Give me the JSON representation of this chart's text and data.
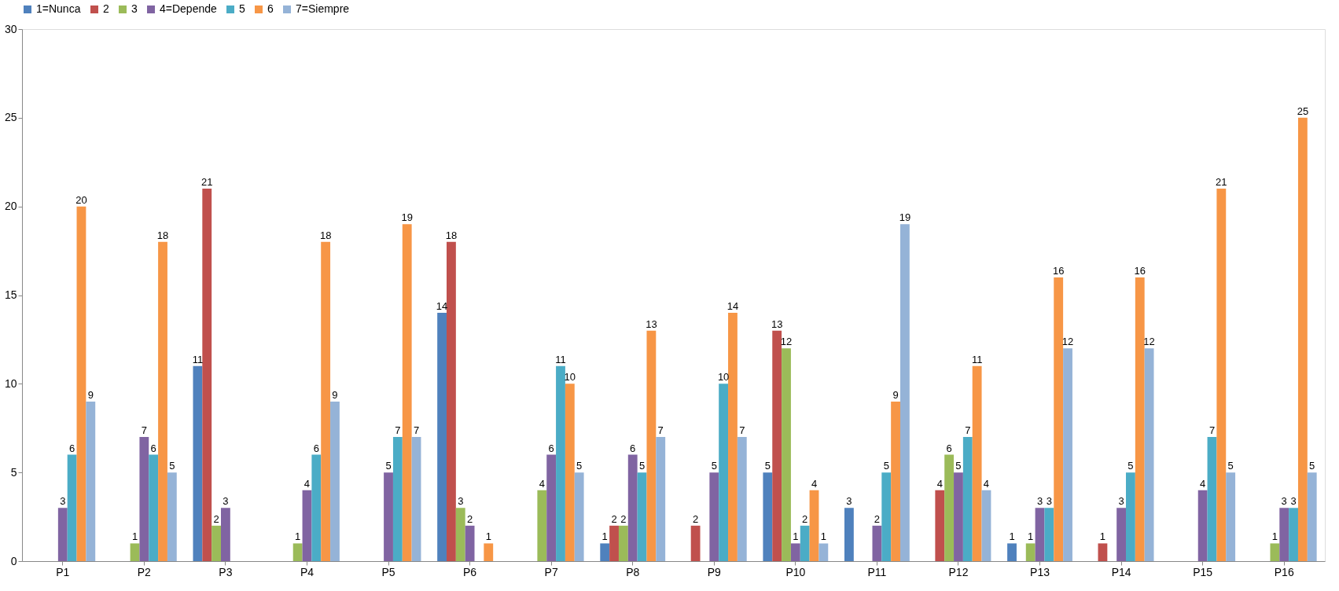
{
  "chart_data": {
    "type": "bar",
    "categories": [
      "P1",
      "P2",
      "P3",
      "P4",
      "P5",
      "P6",
      "P7",
      "P8",
      "P9",
      "P10",
      "P11",
      "P12",
      "P13",
      "P14",
      "P15",
      "P16"
    ],
    "series": [
      {
        "name": "1=Nunca",
        "color": "#4f81bd",
        "values": [
          0,
          0,
          11,
          0,
          0,
          14,
          0,
          1,
          0,
          5,
          3,
          0,
          1,
          0,
          0,
          0
        ],
        "value_labels": [
          null,
          null,
          "11",
          null,
          null,
          "14",
          null,
          "1",
          null,
          "5",
          "3",
          null,
          "1",
          null,
          null,
          null
        ]
      },
      {
        "name": "2",
        "color": "#c0504d",
        "values": [
          0,
          0,
          21,
          0,
          0,
          18,
          0,
          2,
          2,
          13,
          0,
          4,
          0,
          1,
          0,
          0
        ],
        "value_labels": [
          null,
          null,
          "21",
          null,
          null,
          "18",
          null,
          "2",
          "2",
          "13",
          null,
          "4",
          null,
          "1",
          null,
          null
        ]
      },
      {
        "name": "3",
        "color": "#9bbb59",
        "values": [
          0,
          1,
          2,
          1,
          0,
          3,
          4,
          2,
          0,
          12,
          0,
          6,
          1,
          0,
          0,
          1
        ],
        "value_labels": [
          null,
          "1",
          "2",
          "1",
          null,
          "3",
          "4",
          "2",
          null,
          "12",
          null,
          "6",
          "1",
          null,
          null,
          "1"
        ]
      },
      {
        "name": "4=Depende",
        "color": "#8064a2",
        "values": [
          3,
          7,
          3,
          4,
          5,
          2,
          6,
          6,
          5,
          1,
          2,
          5,
          3,
          3,
          4,
          3
        ],
        "value_labels": [
          "3",
          "7",
          "3",
          "4",
          "5",
          "2",
          "6",
          "6",
          "5",
          "1",
          "2",
          "5",
          "3",
          "3",
          "4",
          "3"
        ]
      },
      {
        "name": "5",
        "color": "#4bacc6",
        "values": [
          6,
          6,
          0,
          6,
          7,
          0,
          11,
          5,
          10,
          2,
          5,
          7,
          3,
          5,
          7,
          3
        ],
        "value_labels": [
          "6",
          "6",
          null,
          "6",
          "7",
          null,
          "11",
          "5",
          "10",
          "2",
          "5",
          "7",
          "3",
          "5",
          "7",
          "3"
        ]
      },
      {
        "name": "6",
        "color": "#f79646",
        "values": [
          20,
          18,
          0,
          18,
          19,
          1,
          10,
          13,
          14,
          4,
          9,
          11,
          16,
          16,
          21,
          25
        ],
        "value_labels": [
          "20",
          "18",
          null,
          "18",
          "19",
          "1",
          "10",
          "13",
          "14",
          "4",
          "9",
          "11",
          "16",
          "16",
          "21",
          "25"
        ]
      },
      {
        "name": "7=Siempre",
        "color": "#95b3d7",
        "values": [
          9,
          5,
          0,
          9,
          7,
          0,
          5,
          7,
          7,
          1,
          19,
          4,
          12,
          12,
          5,
          5
        ],
        "value_labels": [
          "9",
          "5",
          null,
          "9",
          "7",
          null,
          "5",
          "7",
          "7",
          "1",
          "19",
          "4",
          "12",
          "12",
          "5",
          "5"
        ]
      }
    ],
    "ylim": [
      0,
      30
    ],
    "yticks": [
      0,
      5,
      10,
      15,
      20,
      25,
      30
    ],
    "grid": false,
    "legend": "top"
  }
}
